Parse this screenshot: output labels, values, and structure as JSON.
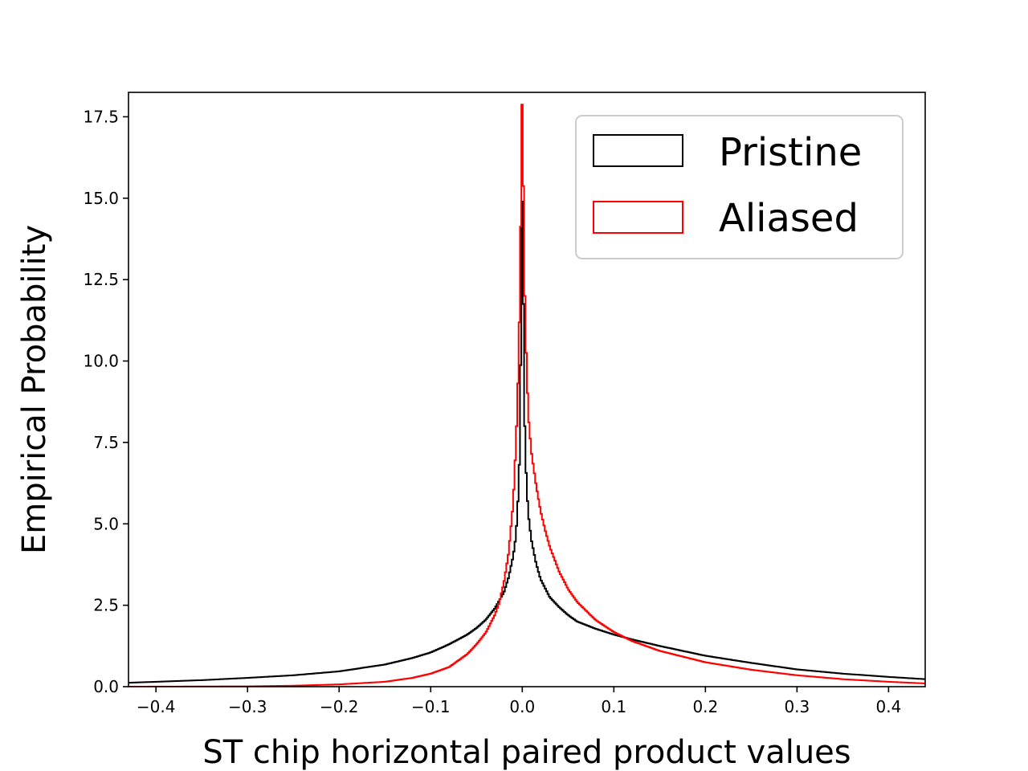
{
  "chart_data": {
    "type": "line",
    "style": "step-histogram",
    "title": "",
    "xlabel": "ST chip horizontal paired product values",
    "ylabel": "Empirical Probability",
    "xlim": [
      -0.43,
      0.44
    ],
    "ylim": [
      0,
      18.25
    ],
    "x_ticks": [
      -0.4,
      -0.3,
      -0.2,
      -0.1,
      0.0,
      0.1,
      0.2,
      0.3,
      0.4
    ],
    "x_tick_labels": [
      "−0.4",
      "−0.3",
      "−0.2",
      "−0.1",
      "0.0",
      "0.1",
      "0.2",
      "0.3",
      "0.4"
    ],
    "y_ticks": [
      0,
      2.5,
      5,
      7.5,
      10,
      12.5,
      15,
      17.5
    ],
    "y_tick_labels": [
      "0.0",
      "2.5",
      "5.0",
      "7.5",
      "10.0",
      "12.5",
      "15.0",
      "17.5"
    ],
    "grid": false,
    "legend_position": "top-right",
    "series": [
      {
        "name": "Pristine",
        "color": "#000000",
        "x": [
          -0.43,
          -0.4,
          -0.35,
          -0.3,
          -0.25,
          -0.2,
          -0.15,
          -0.12,
          -0.1,
          -0.08,
          -0.06,
          -0.05,
          -0.04,
          -0.03,
          -0.02,
          -0.015,
          -0.01,
          -0.007,
          -0.005,
          -0.003,
          -0.002,
          -0.001,
          0.0,
          0.001,
          0.002,
          0.003,
          0.005,
          0.007,
          0.01,
          0.015,
          0.02,
          0.03,
          0.04,
          0.05,
          0.06,
          0.08,
          0.1,
          0.12,
          0.15,
          0.2,
          0.25,
          0.3,
          0.35,
          0.4,
          0.44
        ],
        "y": [
          0.12,
          0.15,
          0.2,
          0.27,
          0.35,
          0.47,
          0.68,
          0.88,
          1.05,
          1.3,
          1.6,
          1.8,
          2.05,
          2.4,
          2.9,
          3.35,
          4.0,
          4.6,
          5.5,
          7.0,
          9.0,
          12.5,
          15.7,
          12.5,
          9.5,
          7.5,
          6.0,
          5.2,
          4.5,
          3.8,
          3.3,
          2.75,
          2.45,
          2.2,
          2.0,
          1.78,
          1.6,
          1.45,
          1.25,
          0.95,
          0.73,
          0.53,
          0.4,
          0.3,
          0.23
        ]
      },
      {
        "name": "Aliased",
        "color": "#ff0000",
        "x": [
          -0.43,
          -0.3,
          -0.25,
          -0.2,
          -0.15,
          -0.12,
          -0.1,
          -0.08,
          -0.06,
          -0.05,
          -0.04,
          -0.03,
          -0.025,
          -0.02,
          -0.015,
          -0.01,
          -0.007,
          -0.005,
          -0.003,
          -0.002,
          -0.001,
          0.0,
          0.001,
          0.002,
          0.003,
          0.005,
          0.007,
          0.01,
          0.015,
          0.02,
          0.025,
          0.03,
          0.04,
          0.05,
          0.06,
          0.08,
          0.1,
          0.12,
          0.15,
          0.2,
          0.25,
          0.3,
          0.35,
          0.4,
          0.44
        ],
        "y": [
          0.0,
          0.01,
          0.03,
          0.07,
          0.15,
          0.27,
          0.4,
          0.6,
          1.0,
          1.3,
          1.65,
          2.2,
          2.6,
          3.2,
          4.1,
          5.6,
          7.4,
          9.0,
          11.5,
          13.5,
          16.0,
          18.5,
          16.0,
          13.5,
          11.5,
          9.5,
          8.2,
          7.2,
          6.2,
          5.4,
          4.8,
          4.3,
          3.55,
          3.0,
          2.6,
          2.05,
          1.68,
          1.4,
          1.1,
          0.75,
          0.52,
          0.35,
          0.23,
          0.15,
          0.1
        ]
      }
    ]
  }
}
